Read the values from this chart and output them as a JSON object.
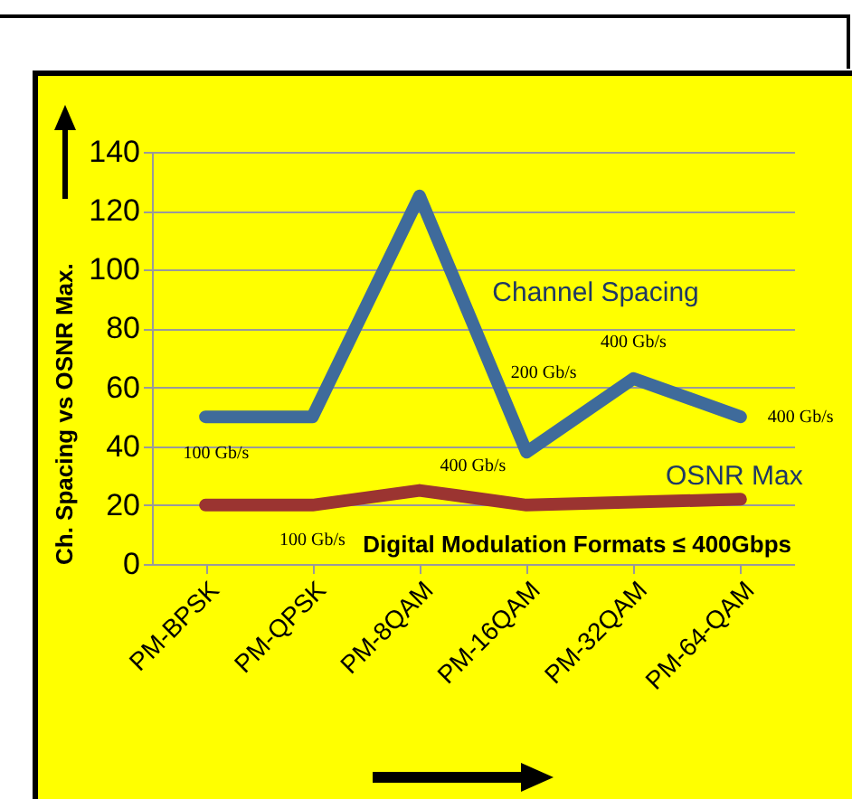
{
  "chart_data": {
    "type": "line",
    "ylabel": "Ch. Spacing vs OSNR Max.",
    "xlabel": "Digital Modulation Formats ≤ 400Gbps",
    "categories": [
      "PM-BPSK",
      "PM-QPSK",
      "PM-8QAM",
      "PM-16QAM",
      "PM-32QAM",
      "PM-64-QAM"
    ],
    "series": [
      {
        "name": "Channel Spacing",
        "color": "#3f6b9b",
        "values": [
          50,
          50,
          125,
          38,
          63,
          50
        ]
      },
      {
        "name": "OSNR Max",
        "color": "#9b3431",
        "values": [
          20,
          20,
          25,
          20,
          21,
          22
        ]
      }
    ],
    "ylim": [
      0,
      140
    ],
    "yticks": [
      0,
      20,
      40,
      60,
      80,
      100,
      120,
      140
    ],
    "grid": "y",
    "legend": false,
    "annotations": [
      "100 Gb/s",
      "100 Gb/s",
      "400 Gb/s",
      "200 Gb/s",
      "400 Gb/s",
      "400 Gb/s"
    ]
  }
}
